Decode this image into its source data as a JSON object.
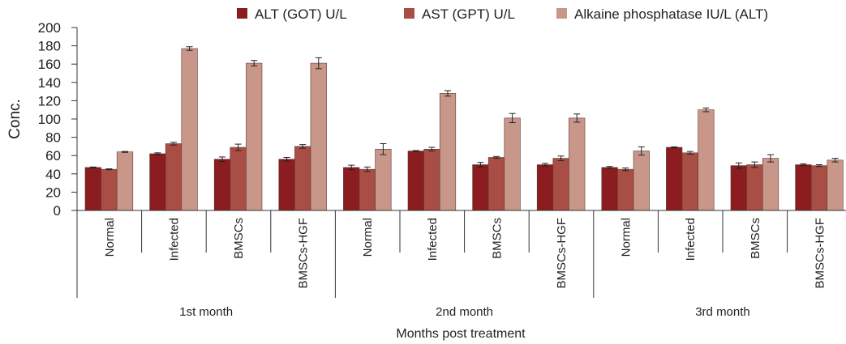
{
  "chart_data": {
    "type": "bar",
    "title": "",
    "xlabel": "Months post treatment",
    "ylabel": "Conc.",
    "ylim": [
      0,
      200
    ],
    "yticks": [
      0,
      20,
      40,
      60,
      80,
      100,
      120,
      140,
      160,
      180,
      200
    ],
    "grid": false,
    "legend_position": "top",
    "groups": [
      "1st month",
      "2nd month",
      "3rd month"
    ],
    "subcategories": [
      "Normal",
      "Infected",
      "BMSCs",
      "BMSCs-HGF"
    ],
    "categories": [
      "Normal",
      "Infected",
      "BMSCs",
      "BMSCs-HGF",
      "Normal",
      "Infected",
      "BMSCs",
      "BMSCs-HGF",
      "Normal",
      "Infected",
      "BMSCs",
      "BMSCs-HGF"
    ],
    "series": [
      {
        "name": "ALT (GOT) U/L",
        "color": "#8b1c20",
        "values": [
          47,
          62,
          56,
          56,
          47,
          65,
          50,
          50,
          47,
          69,
          49,
          50
        ],
        "errors": [
          0.5,
          1,
          2.5,
          2,
          2.5,
          0.5,
          2.5,
          1.5,
          1,
          0.5,
          3,
          1
        ]
      },
      {
        "name": "AST (GPT) U/L",
        "color": "#a94e45",
        "values": [
          45,
          73,
          69,
          70,
          45,
          67,
          58,
          57,
          45,
          63,
          50,
          49
        ],
        "errors": [
          0.5,
          1.5,
          3.5,
          2,
          2.5,
          2,
          1,
          2.5,
          1.5,
          1.5,
          3,
          1
        ]
      },
      {
        "name": "Alkaine phosphatase IU/L (ALT)",
        "color": "#c9968a",
        "values": [
          64,
          177,
          161,
          161,
          67,
          128,
          101,
          101,
          65,
          110,
          57,
          55
        ],
        "errors": [
          0.5,
          2,
          3,
          6,
          6,
          3,
          5,
          4.5,
          4.5,
          2,
          4,
          2
        ]
      }
    ]
  }
}
